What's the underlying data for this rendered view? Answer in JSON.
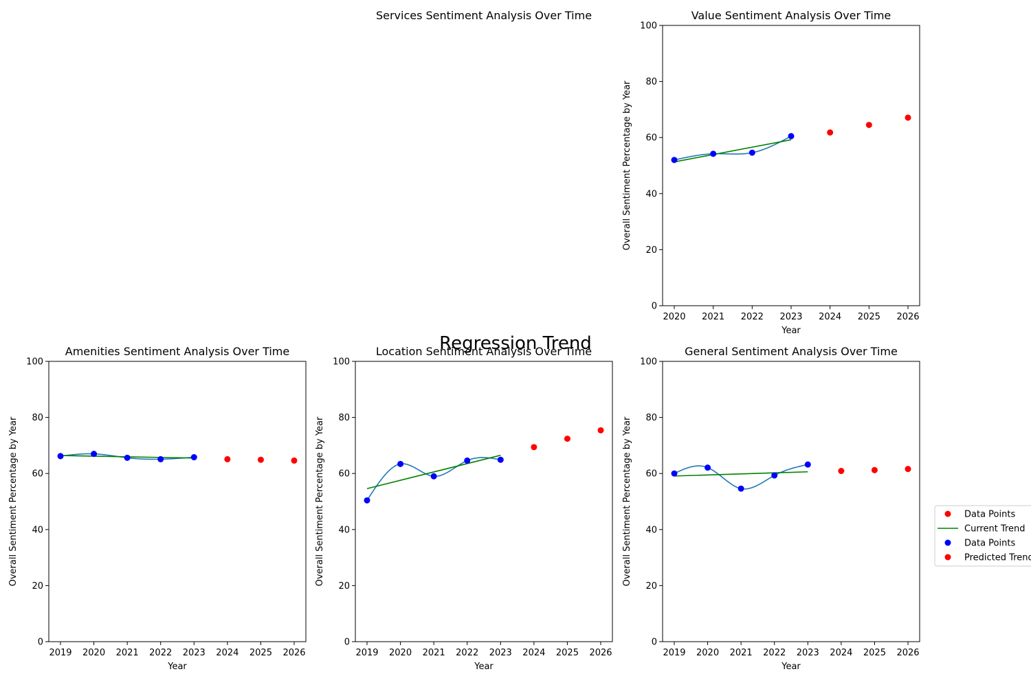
{
  "figure": {
    "suptitle": "Regression Trend",
    "legend": {
      "placement": "right, outside the plot area",
      "entries": [
        {
          "label": "Data Points",
          "kind": "marker",
          "color": "#ff0000"
        },
        {
          "label": "Current Trend",
          "kind": "line",
          "color": "#008000"
        },
        {
          "label": "Data Points",
          "kind": "marker",
          "color": "#0000ff"
        },
        {
          "label": "Predicted Trend",
          "kind": "marker",
          "color": "#ff0000"
        }
      ]
    }
  },
  "colors": {
    "data_points": "#0000ff",
    "smooth_curve": "#1f77b4",
    "current_trend": "#008000",
    "predicted": "#ff0000",
    "axis": "#000000"
  },
  "chart_data": [
    {
      "type": "scatter",
      "title": "Services Sentiment Analysis Over Time",
      "axes_visible": false,
      "series": []
    },
    {
      "type": "scatter",
      "title": "Value Sentiment Analysis Over Time",
      "xlabel": "Year",
      "ylabel": "Overall Sentiment Percentage by Year",
      "xlim": [
        2019.7,
        2026.3
      ],
      "ylim": [
        0,
        100
      ],
      "xticks": [
        2020,
        2021,
        2022,
        2023,
        2024,
        2025,
        2026
      ],
      "yticks": [
        0,
        20,
        40,
        60,
        80,
        100
      ],
      "data_points": {
        "x": [
          2020,
          2021,
          2022,
          2023
        ],
        "y": [
          52,
          54.2,
          54.6,
          60.5
        ]
      },
      "current_trend": {
        "x": [
          2020,
          2023
        ],
        "y": [
          51.3,
          59.2
        ]
      },
      "predicted_trend": {
        "x": [
          2024,
          2025,
          2026
        ],
        "y": [
          61.8,
          64.5,
          67.1
        ]
      }
    },
    {
      "type": "scatter",
      "title": "Amenities Sentiment Analysis Over Time",
      "xlabel": "Year",
      "ylabel": "Overall Sentiment Percentage by Year",
      "xlim": [
        2018.65,
        2026.35
      ],
      "ylim": [
        0,
        100
      ],
      "xticks": [
        2019,
        2020,
        2021,
        2022,
        2023,
        2024,
        2025,
        2026
      ],
      "yticks": [
        0,
        20,
        40,
        60,
        80,
        100
      ],
      "data_points": {
        "x": [
          2019,
          2020,
          2021,
          2022,
          2023
        ],
        "y": [
          66.2,
          67.0,
          65.6,
          65.1,
          65.8
        ]
      },
      "current_trend": {
        "x": [
          2019,
          2023
        ],
        "y": [
          66.4,
          65.5
        ]
      },
      "predicted_trend": {
        "x": [
          2024,
          2025,
          2026
        ],
        "y": [
          65.1,
          64.9,
          64.6
        ]
      }
    },
    {
      "type": "scatter",
      "title": "Location Sentiment Analysis Over Time",
      "xlabel": "Year",
      "ylabel": "Overall Sentiment Percentage by Year",
      "xlim": [
        2018.65,
        2026.35
      ],
      "ylim": [
        0,
        100
      ],
      "xticks": [
        2019,
        2020,
        2021,
        2022,
        2023,
        2024,
        2025,
        2026
      ],
      "yticks": [
        0,
        20,
        40,
        60,
        80,
        100
      ],
      "data_points": {
        "x": [
          2019,
          2020,
          2021,
          2022,
          2023
        ],
        "y": [
          50.4,
          63.4,
          59.0,
          64.6,
          64.9
        ]
      },
      "current_trend": {
        "x": [
          2019,
          2023
        ],
        "y": [
          54.6,
          66.5
        ]
      },
      "predicted_trend": {
        "x": [
          2024,
          2025,
          2026
        ],
        "y": [
          69.4,
          72.4,
          75.4
        ]
      }
    },
    {
      "type": "scatter",
      "title": "General Sentiment Analysis Over Time",
      "xlabel": "Year",
      "ylabel": "Overall Sentiment Percentage by Year",
      "xlim": [
        2018.65,
        2026.35
      ],
      "ylim": [
        0,
        100
      ],
      "xticks": [
        2019,
        2020,
        2021,
        2022,
        2023,
        2024,
        2025,
        2026
      ],
      "yticks": [
        0,
        20,
        40,
        60,
        80,
        100
      ],
      "data_points": {
        "x": [
          2019,
          2020,
          2021,
          2022,
          2023
        ],
        "y": [
          60.0,
          62.1,
          54.6,
          59.3,
          63.2
        ]
      },
      "current_trend": {
        "x": [
          2019,
          2023
        ],
        "y": [
          59.1,
          60.6
        ]
      },
      "predicted_trend": {
        "x": [
          2024,
          2025,
          2026
        ],
        "y": [
          60.9,
          61.2,
          61.6
        ]
      }
    }
  ]
}
